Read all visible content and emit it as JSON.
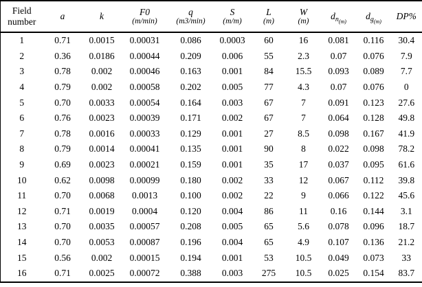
{
  "table": {
    "header": {
      "field_number": [
        "Field",
        "number"
      ],
      "a": "a",
      "k": "k",
      "f0": [
        "F0",
        "(m/min)"
      ],
      "q": [
        "q",
        "(m3/min)"
      ],
      "s": [
        "S",
        "(m/m)"
      ],
      "l": [
        "L",
        "(m)"
      ],
      "w": [
        "W",
        "(m)"
      ],
      "dn": [
        "d",
        "n",
        "(m)"
      ],
      "dg": [
        "d",
        "g",
        "(m)"
      ],
      "dp": "DP%"
    },
    "rows": [
      [
        "1",
        "0.71",
        "0.0015",
        "0.00031",
        "0.086",
        "0.0003",
        "60",
        "16",
        "0.081",
        "0.116",
        "30.4"
      ],
      [
        "2",
        "0.36",
        "0.0186",
        "0.00044",
        "0.209",
        "0.006",
        "55",
        "2.3",
        "0.07",
        "0.076",
        "7.9"
      ],
      [
        "3",
        "0.78",
        "0.002",
        "0.00046",
        "0.163",
        "0.001",
        "84",
        "15.5",
        "0.093",
        "0.089",
        "7.7"
      ],
      [
        "4",
        "0.79",
        "0.002",
        "0.00058",
        "0.202",
        "0.005",
        "77",
        "4.3",
        "0.07",
        "0.076",
        "0"
      ],
      [
        "5",
        "0.70",
        "0.0033",
        "0.00054",
        "0.164",
        "0.003",
        "67",
        "7",
        "0.091",
        "0.123",
        "27.6"
      ],
      [
        "6",
        "0.76",
        "0.0023",
        "0.00039",
        "0.171",
        "0.002",
        "67",
        "7",
        "0.064",
        "0.128",
        "49.8"
      ],
      [
        "7",
        "0.78",
        "0.0016",
        "0.00033",
        "0.129",
        "0.001",
        "27",
        "8.5",
        "0.098",
        "0.167",
        "41.9"
      ],
      [
        "8",
        "0.79",
        "0.0014",
        "0.00041",
        "0.135",
        "0.001",
        "90",
        "8",
        "0.022",
        "0.098",
        "78.2"
      ],
      [
        "9",
        "0.69",
        "0.0023",
        "0.00021",
        "0.159",
        "0.001",
        "35",
        "17",
        "0.037",
        "0.095",
        "61.6"
      ],
      [
        "10",
        "0.62",
        "0.0098",
        "0.00099",
        "0.180",
        "0.002",
        "33",
        "12",
        "0.067",
        "0.112",
        "39.8"
      ],
      [
        "11",
        "0.70",
        "0.0068",
        "0.0013",
        "0.100",
        "0.002",
        "22",
        "9",
        "0.066",
        "0.122",
        "45.6"
      ],
      [
        "12",
        "0.71",
        "0.0019",
        "0.0004",
        "0.120",
        "0.004",
        "86",
        "11",
        "0.16",
        "0.144",
        "3.1"
      ],
      [
        "13",
        "0.70",
        "0.0035",
        "0.00057",
        "0.208",
        "0.005",
        "65",
        "5.6",
        "0.078",
        "0.096",
        "18.7"
      ],
      [
        "14",
        "0.70",
        "0.0053",
        "0.00087",
        "0.196",
        "0.004",
        "65",
        "4.9",
        "0.107",
        "0.136",
        "21.2"
      ],
      [
        "15",
        "0.56",
        "0.002",
        "0.00015",
        "0.194",
        "0.001",
        "53",
        "10.5",
        "0.049",
        "0.073",
        "33"
      ],
      [
        "16",
        "0.71",
        "0.0025",
        "0.00072",
        "0.388",
        "0.003",
        "275",
        "10.5",
        "0.025",
        "0.154",
        "83.7"
      ]
    ]
  }
}
